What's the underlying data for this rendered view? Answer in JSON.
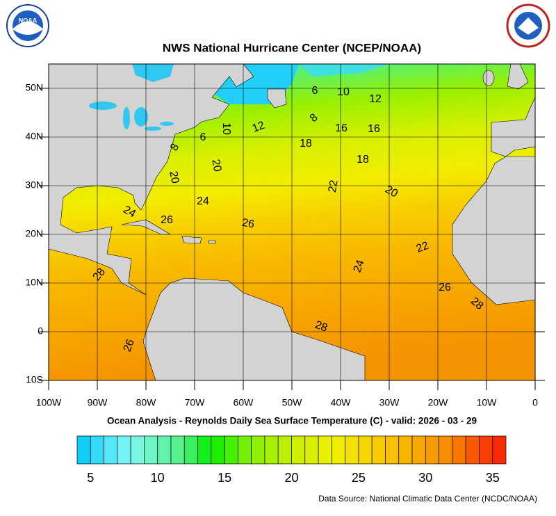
{
  "header": {
    "title": "NWS National Hurricane Center (NCEP/NOAA)",
    "logo_left": "NOAA"
  },
  "chart_data": {
    "type": "map",
    "subtitle": "Ocean Analysis - Reynolds Daily Sea Surface Temperature (C) - valid: 2026 - 03 - 29",
    "xlim": [
      -100,
      0
    ],
    "ylim": [
      -10,
      55
    ],
    "xticks": [
      {
        "value": -100,
        "label": "100W"
      },
      {
        "value": -90,
        "label": "90W"
      },
      {
        "value": -80,
        "label": "80W"
      },
      {
        "value": -70,
        "label": "70W"
      },
      {
        "value": -60,
        "label": "60W"
      },
      {
        "value": -50,
        "label": "50W"
      },
      {
        "value": -40,
        "label": "40W"
      },
      {
        "value": -30,
        "label": "30W"
      },
      {
        "value": -20,
        "label": "20W"
      },
      {
        "value": -10,
        "label": "10W"
      },
      0
    ],
    "yticks": [
      {
        "value": 50,
        "label": "50N"
      },
      {
        "value": 40,
        "label": "40N"
      },
      {
        "value": 30,
        "label": "30N"
      },
      {
        "value": 20,
        "label": "20N"
      },
      {
        "value": 10,
        "label": "10N"
      },
      0,
      {
        "value": -10,
        "label": "10S"
      }
    ],
    "grid": true,
    "contour_labels": [
      6,
      10,
      12,
      8,
      16,
      16,
      12,
      10,
      6,
      8,
      18,
      18,
      20,
      20,
      22,
      20,
      24,
      24,
      26,
      26,
      22,
      24,
      28,
      26,
      28,
      28,
      26
    ]
  },
  "colorbar": {
    "lim": [
      4,
      36
    ],
    "ticks": [
      5,
      10,
      15,
      20,
      25,
      30,
      35
    ]
  },
  "footer": {
    "source": "Data Source: National Climatic Data Center (NCDC/NOAA)"
  }
}
